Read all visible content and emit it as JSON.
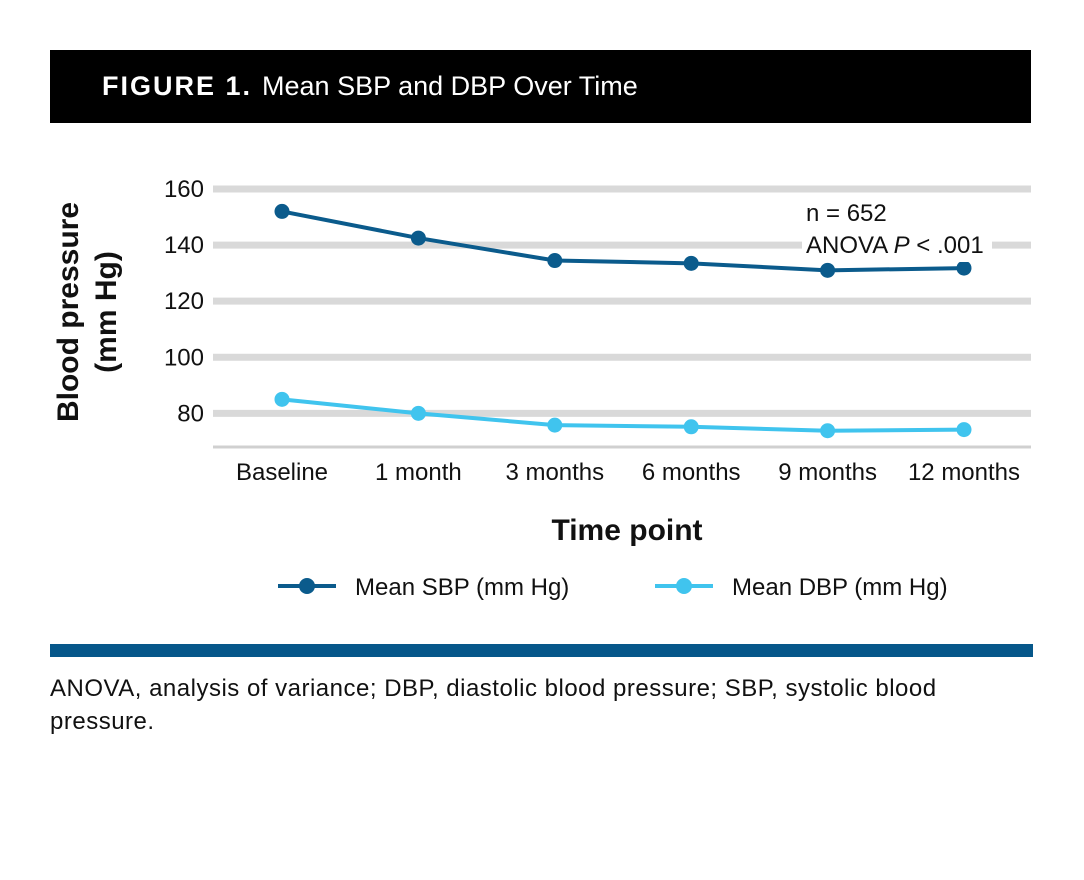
{
  "header": {
    "figure_label": "FIGURE 1.",
    "title": "Mean SBP and DBP Over Time"
  },
  "chart_data": {
    "type": "line",
    "categories": [
      "Baseline",
      "1 month",
      "3 months",
      "6 months",
      "9 months",
      "12 months"
    ],
    "series": [
      {
        "name": "Mean SBP (mm Hg)",
        "values": [
          152,
          142.5,
          134.5,
          133.5,
          131,
          131.8
        ],
        "color": "#0b5b8c"
      },
      {
        "name": "Mean DBP (mm Hg)",
        "values": [
          85,
          80,
          75.8,
          75.2,
          73.8,
          74.2
        ],
        "color": "#40c4ee"
      }
    ],
    "xlabel": "Time point",
    "ylabel_line1": "Blood pressure",
    "ylabel_line2": "(mm Hg)",
    "yticks": [
      80,
      100,
      120,
      140,
      160
    ],
    "ylim": [
      68,
      160
    ],
    "grid": true,
    "annotation_line1": "n = 652",
    "annotation_line2_prefix": "ANOVA ",
    "annotation_line2_italic": "P",
    "annotation_line2_suffix": " < .001",
    "legend_position": "bottom"
  },
  "footnote": "ANOVA, analysis of variance; DBP, diastolic blood pressure; SBP, systolic blood pressure."
}
